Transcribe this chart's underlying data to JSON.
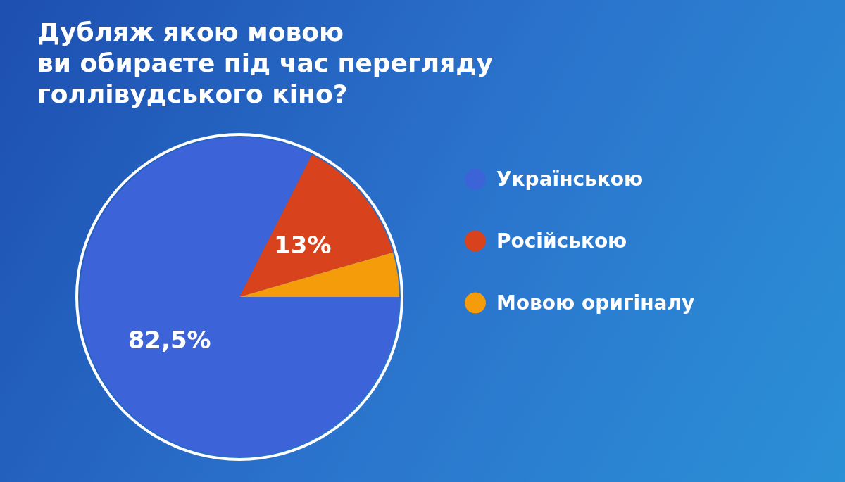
{
  "chart_data": {
    "type": "pie",
    "title": "Дубляж якою мовою\nви обираєте під час перегляду\nголлівудського кіно?",
    "categories": [
      "Українською",
      "Російською",
      "Мовою оригіналу"
    ],
    "values": [
      82.5,
      13,
      4.5
    ],
    "value_labels": [
      "82,5%",
      "13%",
      null
    ],
    "colors": [
      "#3d63d8",
      "#d8421c",
      "#f59c0a"
    ],
    "legend": "right"
  }
}
